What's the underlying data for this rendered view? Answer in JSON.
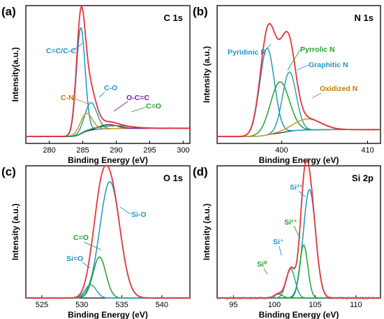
{
  "chart_data": [
    {
      "id": "a",
      "panel_label": "(a)",
      "title": "C 1s",
      "type": "line",
      "xlabel": "Binding Energy (eV)",
      "ylabel": "Intensity(a.u.)",
      "xlim": [
        276.5,
        301
      ],
      "ylim": [
        0,
        1.0
      ],
      "xticks": [
        280,
        285,
        290,
        295,
        300
      ],
      "baseline": 0.05,
      "sum_color": "#e8333b",
      "raw_color": "#555555",
      "components": [
        {
          "label": "C=C/C-C",
          "center": 284.7,
          "height": 0.77,
          "width": 0.65,
          "color": "#1f95c6",
          "text_color": "#1f95c6"
        },
        {
          "label": "C-O",
          "center": 286.2,
          "height": 0.2,
          "width": 0.9,
          "color": "#2ea0a8",
          "text_color": "#1f95c6"
        },
        {
          "label": "C-N",
          "center": 285.5,
          "height": 0.13,
          "width": 0.9,
          "color": "#c99a2e",
          "text_color": "#c07a10"
        },
        {
          "label": "O-C=C",
          "center": 288.8,
          "height": 0.03,
          "width": 1.3,
          "color": "#7b1fa2",
          "text_color": "#7b1fa2"
        },
        {
          "label": "C=O",
          "center": 289.5,
          "height": 0.02,
          "width": 2.5,
          "color": "#22a02e",
          "text_color": "#22a02e"
        }
      ]
    },
    {
      "id": "b",
      "panel_label": "(b)",
      "title": "N 1s",
      "type": "line",
      "xlabel": "Binding Energy (eV)",
      "ylabel": "Intensity (a.u.)",
      "xlim": [
        392.5,
        411.5
      ],
      "ylim": [
        0,
        1.0
      ],
      "xticks": [
        400,
        410
      ],
      "baseline": 0.05,
      "sum_color": "#e8333b",
      "raw_color": "#555555",
      "components": [
        {
          "label": "Pyridinic N",
          "center": 398.3,
          "height": 0.63,
          "width": 0.85,
          "color": "#1f95c6",
          "text_color": "#1f95c6"
        },
        {
          "label": "Pyrrolic N",
          "center": 399.8,
          "height": 0.37,
          "width": 1.1,
          "color": "#22a02e",
          "text_color": "#22a02e"
        },
        {
          "label": "Graphitic N",
          "center": 400.9,
          "height": 0.43,
          "width": 0.8,
          "color": "#2ea0a8",
          "text_color": "#1f95c6"
        },
        {
          "label": "Oxidized N",
          "center": 403.0,
          "height": 0.08,
          "width": 1.6,
          "color": "#c99a2e",
          "text_color": "#c07a10"
        }
      ]
    },
    {
      "id": "c",
      "panel_label": "(c)",
      "title": "O 1s",
      "type": "line",
      "xlabel": "Binding Energy (eV)",
      "ylabel": "Intensity (a.u.)",
      "xlim": [
        523,
        543.5
      ],
      "ylim": [
        0,
        1.0
      ],
      "xticks": [
        525,
        530,
        535,
        540
      ],
      "baseline": 0.0,
      "sum_color": "#e8333b",
      "raw_color": "#555555",
      "components": [
        {
          "label": "Si-O",
          "center": 533.5,
          "height": 0.88,
          "width": 1.25,
          "color": "#1f95c6",
          "text_color": "#1f95c6"
        },
        {
          "label": "C=O",
          "center": 532.2,
          "height": 0.31,
          "width": 0.8,
          "color": "#22a02e",
          "text_color": "#22a02e"
        },
        {
          "label": "Si=O",
          "center": 531.1,
          "height": 0.1,
          "width": 0.7,
          "color": "#2ea0a8",
          "text_color": "#1f95c6"
        }
      ]
    },
    {
      "id": "d",
      "panel_label": "(d)",
      "title": "Si 2p",
      "type": "line",
      "xlabel": "Binding Energy (eV)",
      "ylabel": "Intensity (a.u.)",
      "xlim": [
        93,
        113
      ],
      "ylim": [
        0,
        1.0
      ],
      "xticks": [
        95,
        100,
        105,
        110
      ],
      "baseline": 0.0,
      "sum_color": "#e8333b",
      "raw_color": "#999999",
      "components": [
        {
          "label": "Si³⁺",
          "center": 104.3,
          "height": 0.82,
          "width": 0.75,
          "color": "#1f95c6",
          "text_color": "#1f95c6"
        },
        {
          "label": "Si²⁺",
          "center": 103.6,
          "height": 0.4,
          "width": 0.5,
          "color": "#22a02e",
          "text_color": "#22a02e"
        },
        {
          "label": "Si⁺",
          "center": 102.0,
          "height": 0.22,
          "width": 0.55,
          "color": "#2ea0a8",
          "text_color": "#1f95c6"
        },
        {
          "label": "Si⁰",
          "center": 100.5,
          "height": 0.03,
          "width": 0.5,
          "color": "#22a02e",
          "text_color": "#22a02e"
        }
      ]
    }
  ]
}
